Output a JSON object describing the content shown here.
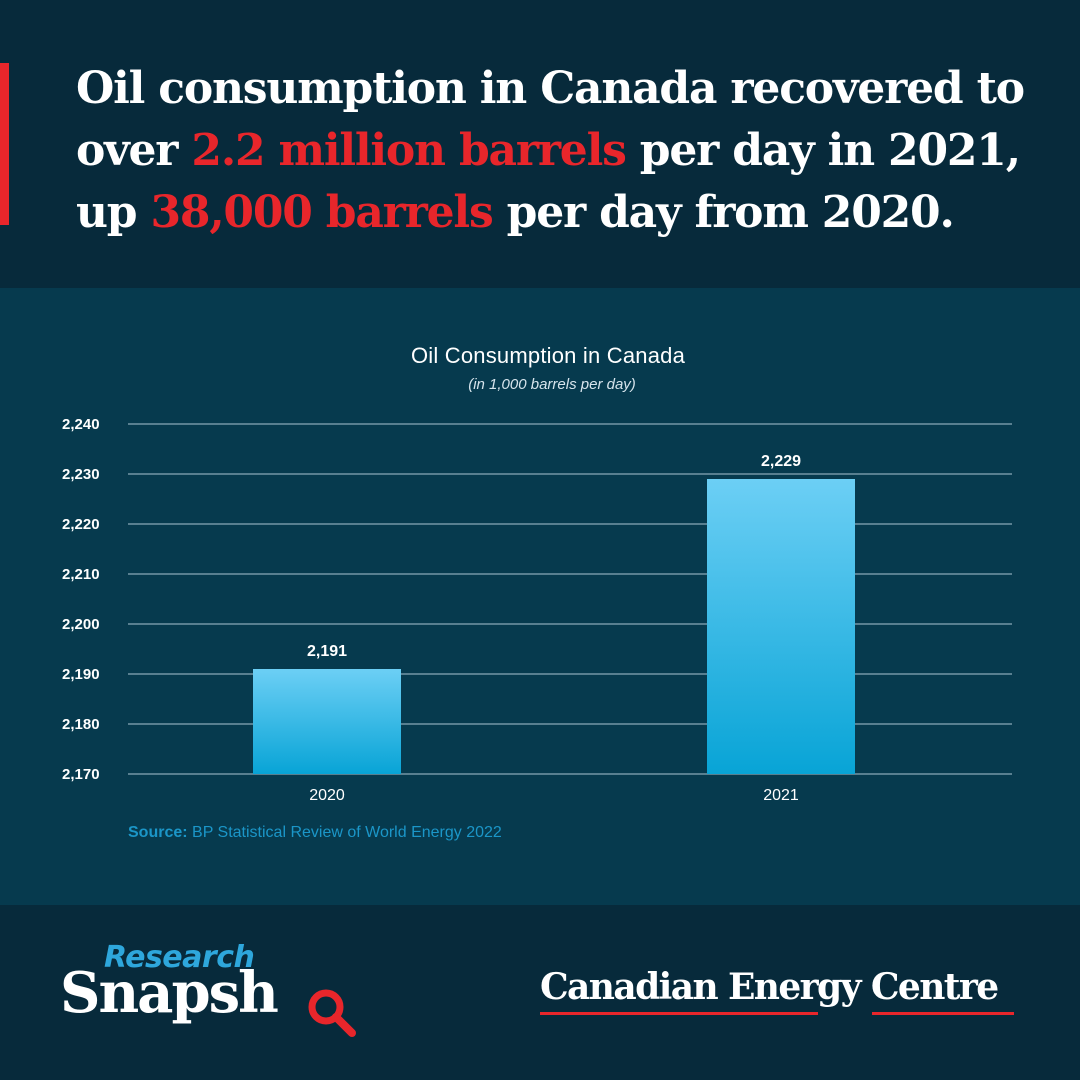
{
  "headline": {
    "part1": "Oil consumption in Canada recovered to over ",
    "highlight1": "2.2 million barrels",
    "part2": " per day in 2021, up ",
    "highlight2": "38,000 barrels",
    "part3": " per day from 2020."
  },
  "chart_data": {
    "type": "bar",
    "title": "Oil Consumption in Canada",
    "subtitle": "(in 1,000 barrels per day)",
    "categories": [
      "2020",
      "2021"
    ],
    "values": [
      2191,
      2229
    ],
    "data_labels": [
      "2,191",
      "2,229"
    ],
    "ylim": [
      2170,
      2240
    ],
    "yticks": [
      2170,
      2180,
      2190,
      2200,
      2210,
      2220,
      2230,
      2240
    ],
    "ytick_labels": [
      "2,170",
      "2,180",
      "2,190",
      "2,200",
      "2,210",
      "2,220",
      "2,230",
      "2,240"
    ],
    "grid": true,
    "bar_color_top": "#6ccff5",
    "bar_color_bottom": "#08a4d6"
  },
  "source": {
    "label": "Source:",
    "text": "BP Statistical Review of World Energy 2022"
  },
  "footer": {
    "logo_top": "Research",
    "logo_bottom": "Snapsh",
    "organization": "Canadian Energy Centre"
  },
  "colors": {
    "background": "#072a3b",
    "panel": "#063a4e",
    "accent_red": "#e8262b",
    "source_blue": "#1b96c8"
  }
}
